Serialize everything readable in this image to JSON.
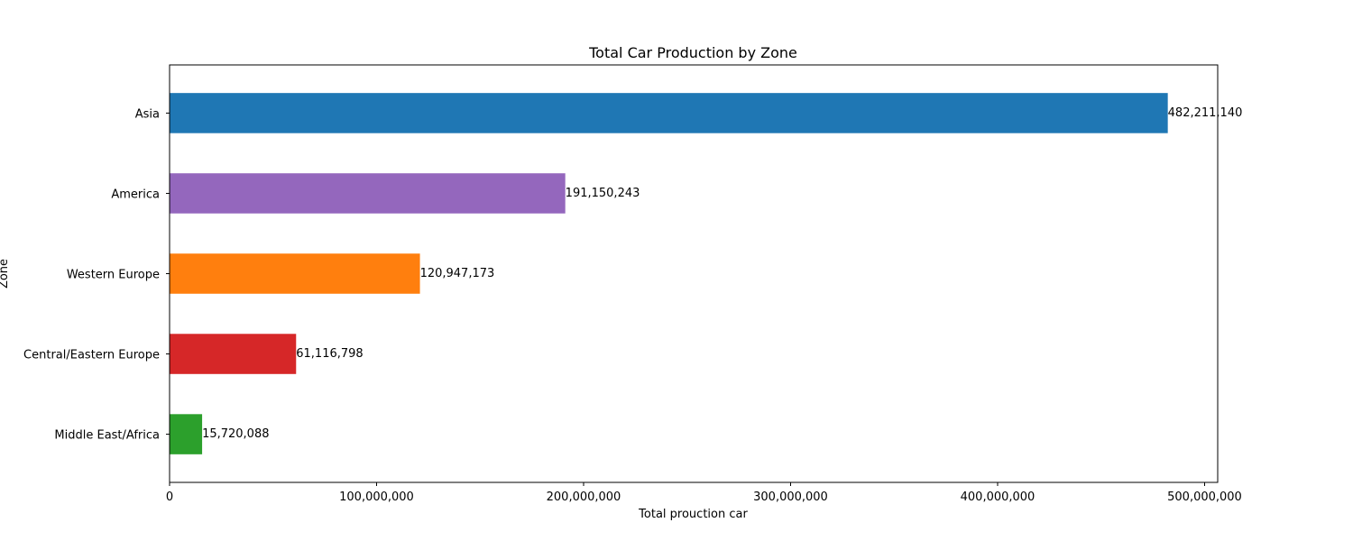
{
  "chart_data": {
    "type": "bar",
    "orientation": "horizontal",
    "title": "Total Car Production by Zone",
    "xlabel": "Total prouction car",
    "ylabel": "Zone",
    "categories": [
      "Middle East/Africa",
      "Central/Eastern Europe",
      "Western Europe",
      "America",
      "Asia"
    ],
    "values": [
      15720088,
      61116798,
      120947173,
      191150243,
      482211140
    ],
    "value_labels": [
      "15,720,088",
      "61,116,798",
      "120,947,173",
      "191,150,243",
      "482,211,140"
    ],
    "colors": [
      "#2ca02c",
      "#d62728",
      "#ff7f0e",
      "#9467bd",
      "#1f77b4"
    ],
    "xlim": [
      0,
      506321697
    ],
    "xticks": [
      0,
      100000000,
      200000000,
      300000000,
      400000000,
      500000000
    ],
    "xtick_labels": [
      "0",
      "100,000,000",
      "200,000,000",
      "300,000,000",
      "400,000,000",
      "500,000,000"
    ],
    "grid": false,
    "legend": "none"
  }
}
